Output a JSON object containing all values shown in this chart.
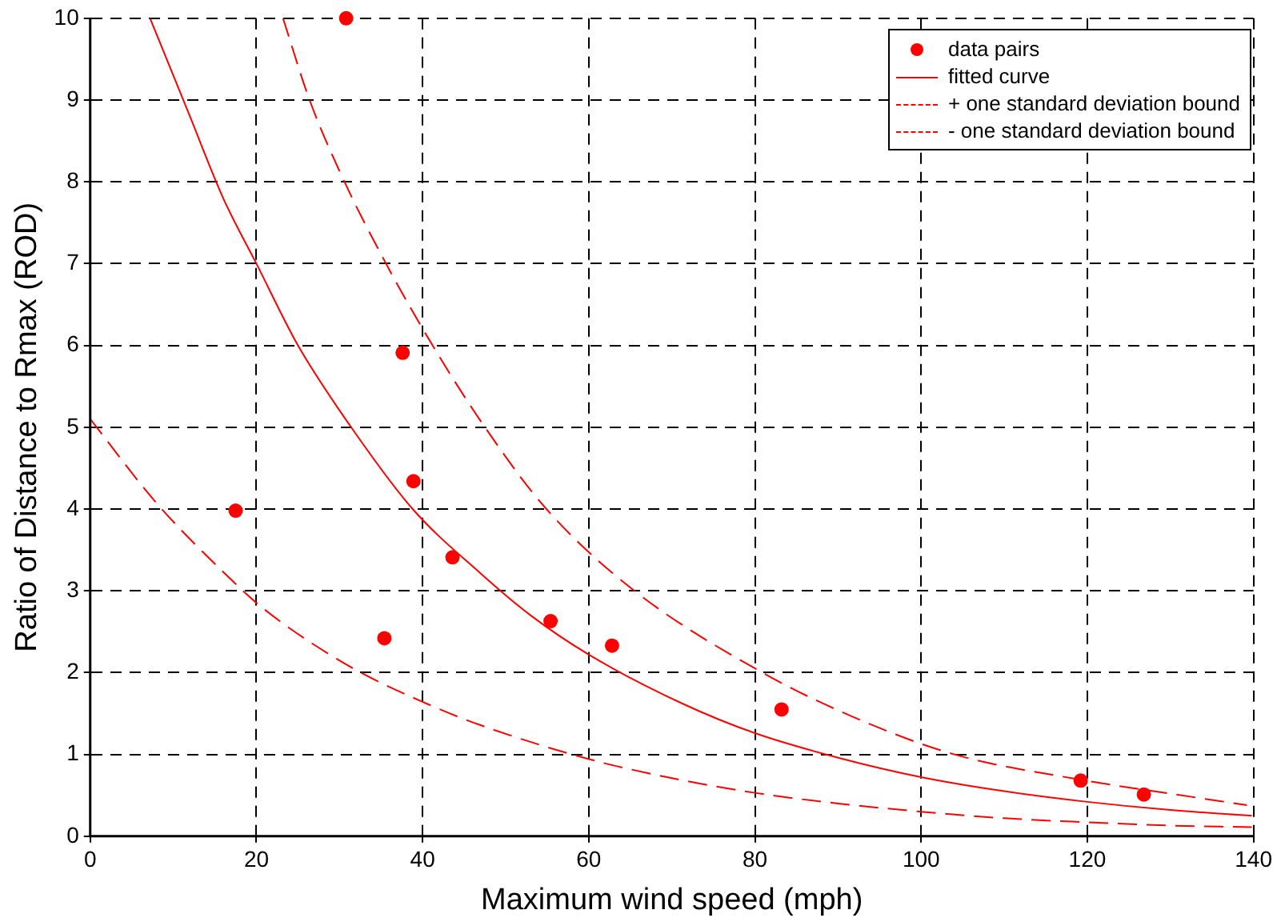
{
  "chart_data": {
    "type": "scatter",
    "xlabel": "Maximum wind speed (mph)",
    "ylabel": "Ratio of Distance to Rmax (ROD)",
    "xlim": [
      0,
      140
    ],
    "xticks": [
      0,
      20,
      40,
      60,
      80,
      100,
      120,
      140
    ],
    "ylim": [
      0,
      10
    ],
    "yticks": [
      0,
      1,
      2,
      3,
      4,
      5,
      6,
      7,
      8,
      9,
      10
    ],
    "grid": true,
    "legend": "top right",
    "series": [
      {
        "name": "data pairs",
        "color": "#ff0000",
        "marker": "circle",
        "x": [
          30.8,
          17.5,
          37.6,
          38.9,
          43.6,
          35.4,
          55.4,
          62.8,
          83.2,
          119.2,
          126.8
        ],
        "values": [
          10.0,
          3.98,
          5.91,
          4.34,
          3.41,
          2.42,
          2.63,
          2.33,
          1.55,
          0.68,
          0.51
        ]
      },
      {
        "name": "fitted curve",
        "type": "line",
        "color": "#ff0000",
        "marker": "none",
        "line_style": "solid",
        "x": [
          7.2,
          12,
          16,
          20,
          25,
          31.4,
          38.8,
          46.9,
          53,
          60,
          71.3,
          80,
          90,
          100.1,
          110,
          120,
          130,
          139.8
        ],
        "values": [
          10,
          8.8,
          7.8,
          7,
          6,
          5,
          4,
          3.22,
          2.7,
          2.22,
          1.62,
          1.26,
          0.96,
          0.72,
          0.55,
          0.42,
          0.32,
          0.25
        ]
      },
      {
        "name": "+ one standard deviation bound",
        "type": "line",
        "color": "#ff0000",
        "marker": "none",
        "line_style": "dashed",
        "x": [
          23.2,
          26.4,
          30.6,
          35.6,
          41.2,
          47.5,
          54.9,
          65.5,
          80.9,
          92,
          104,
          119.2,
          130,
          139.2
        ],
        "values": [
          10,
          9,
          8,
          7,
          6,
          5,
          4,
          3,
          2,
          1.45,
          1,
          0.69,
          0.52,
          0.38
        ]
      },
      {
        "name": "- one standard deviation bound",
        "type": "line",
        "color": "#ff0000",
        "marker": "none",
        "line_style": "dashed",
        "x": [
          0,
          8,
          15.5,
          21,
          31.5,
          40.5,
          46.9,
          60.1,
          70,
          80,
          90,
          100,
          110,
          120,
          130,
          139.8
        ],
        "values": [
          5.1,
          4.07,
          3.28,
          2.77,
          2.06,
          1.62,
          1.36,
          0.94,
          0.71,
          0.53,
          0.4,
          0.3,
          0.22,
          0.17,
          0.13,
          0.11
        ]
      }
    ]
  }
}
